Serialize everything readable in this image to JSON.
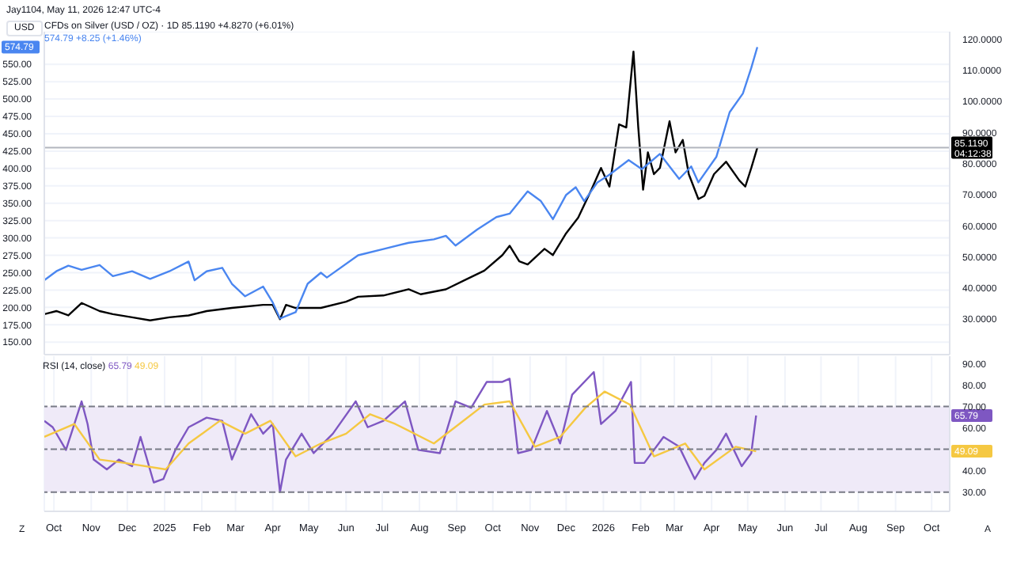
{
  "chart_data": [
    {
      "type": "line",
      "legend": "top left",
      "grid": true,
      "tick_labels": "y",
      "annotations": [
        "Jay1104, May 11, 2026 12:47 UTC-4",
        "USD",
        "85.1190 +4.8270 (+6.01%)",
        "574.79 +8.25 (+1.46%)",
        "574.79",
        "04:12:38"
      ],
      "series": [
        {
          "name": "CFDs on Silver (USD / OZ) · 1D",
          "color": "#000000",
          "axis": "y2",
          "x": [
            "2024-09-23",
            "2024-10-03",
            "2024-10-13",
            "2024-10-24",
            "2024-11-08",
            "2024-11-19",
            "2024-12-05",
            "2024-12-20",
            "2025-01-05",
            "2025-01-21",
            "2025-02-05",
            "2025-02-26",
            "2025-03-24",
            "2025-04-01",
            "2025-04-07",
            "2025-04-12",
            "2025-04-20",
            "2025-05-11",
            "2025-06-01",
            "2025-06-11",
            "2025-07-02",
            "2025-07-23",
            "2025-08-02",
            "2025-08-23",
            "2025-09-08",
            "2025-09-24",
            "2025-10-09",
            "2025-10-15",
            "2025-10-23",
            "2025-10-30",
            "2025-11-13",
            "2025-11-20",
            "2025-12-01",
            "2025-12-11",
            "2025-12-22",
            "2025-12-30",
            "2026-01-06",
            "2026-01-14",
            "2026-01-20",
            "2026-01-26",
            "2026-01-30",
            "2026-02-03",
            "2026-02-07",
            "2026-02-12",
            "2026-02-17",
            "2026-02-25",
            "2026-03-02",
            "2026-03-08",
            "2026-03-13",
            "2026-03-21",
            "2026-03-26",
            "2026-04-03",
            "2026-04-13",
            "2026-04-24",
            "2026-04-29",
            "2026-05-04",
            "2026-05-09"
          ],
          "values": [
            31.6,
            32.6,
            31.2,
            35.2,
            32.6,
            31.6,
            30.6,
            29.6,
            30.6,
            31.2,
            32.6,
            33.6,
            34.6,
            34.6,
            30.0,
            34.6,
            33.6,
            33.6,
            35.6,
            37.2,
            37.6,
            39.6,
            38.0,
            39.6,
            42.6,
            45.6,
            50.6,
            53.6,
            48.6,
            47.6,
            52.6,
            50.6,
            57.6,
            62.6,
            71.6,
            78.6,
            72.6,
            92.6,
            91.6,
            116,
            91.6,
            71.6,
            83.6,
            76.6,
            78.6,
            93.6,
            83.6,
            87.6,
            76.6,
            68.6,
            69.6,
            76.6,
            80.6,
            74.6,
            72.6,
            78.6,
            85.119
          ]
        },
        {
          "color": "#4a86f0",
          "axis": "y",
          "x": [
            "2024-09-23",
            "2024-10-03",
            "2024-10-13",
            "2024-10-24",
            "2024-11-08",
            "2024-11-19",
            "2024-12-05",
            "2024-12-20",
            "2025-01-05",
            "2025-01-21",
            "2025-01-26",
            "2025-02-05",
            "2025-02-18",
            "2025-02-26",
            "2025-03-09",
            "2025-03-24",
            "2025-04-01",
            "2025-04-07",
            "2025-04-20",
            "2025-04-30",
            "2025-05-11",
            "2025-05-16",
            "2025-06-11",
            "2025-07-02",
            "2025-07-23",
            "2025-08-13",
            "2025-08-23",
            "2025-08-31",
            "2025-09-18",
            "2025-10-04",
            "2025-10-15",
            "2025-10-30",
            "2025-11-10",
            "2025-11-20",
            "2025-12-01",
            "2025-12-09",
            "2025-12-16",
            "2025-12-27",
            "2026-01-06",
            "2026-01-22",
            "2026-02-02",
            "2026-02-17",
            "2026-03-05",
            "2026-03-15",
            "2026-03-21",
            "2026-04-05",
            "2026-04-16",
            "2026-04-27",
            "2026-05-04",
            "2026-05-09"
          ],
          "values": [
            239,
            252,
            260,
            254,
            261,
            245,
            252,
            241,
            252,
            266,
            239,
            252,
            257,
            234,
            216,
            230,
            207,
            184,
            193,
            234,
            250,
            243,
            275,
            284,
            293,
            298,
            303,
            289,
            312,
            330,
            335,
            367,
            353,
            327,
            362,
            373,
            353,
            380,
            391,
            412,
            399,
            421,
            385,
            403,
            380,
            417,
            481,
            508,
            545,
            574.79
          ]
        }
      ],
      "xlim": [
        "2024-09-23",
        "2026-10-16"
      ],
      "xticks": [
        {
          "value": "2024-10-01",
          "label": null
        },
        {
          "value": "2024-11-01",
          "label": null
        },
        {
          "value": "2024-12-01",
          "label": null
        },
        {
          "value": "2025-01-01",
          "label": null
        },
        {
          "value": "2025-02-01",
          "label": null
        },
        {
          "value": "2025-03-01",
          "label": null
        },
        {
          "value": "2025-04-01",
          "label": null
        },
        {
          "value": "2025-05-01",
          "label": null
        },
        {
          "value": "2025-06-01",
          "label": null
        },
        {
          "value": "2025-07-01",
          "label": null
        },
        {
          "value": "2025-08-01",
          "label": null
        },
        {
          "value": "2025-09-01",
          "label": null
        },
        {
          "value": "2025-10-01",
          "label": null
        },
        {
          "value": "2025-11-01",
          "label": null
        },
        {
          "value": "2025-12-01",
          "label": null
        },
        {
          "value": "2026-01-01",
          "label": null
        },
        {
          "value": "2026-02-01",
          "label": null
        },
        {
          "value": "2026-03-01",
          "label": null
        },
        {
          "value": "2026-04-01",
          "label": null
        },
        {
          "value": "2026-05-01",
          "label": null
        },
        {
          "value": "2026-06-01",
          "label": null
        },
        {
          "value": "2026-07-01",
          "label": null
        },
        {
          "value": "2026-08-01",
          "label": null
        },
        {
          "value": "2026-09-01",
          "label": null
        },
        {
          "value": "2026-10-01",
          "label": null
        }
      ],
      "ylim": [
        132,
        597
      ],
      "yticks": [
        {
          "value": 150,
          "label": "150.00"
        },
        {
          "value": 175,
          "label": "175.00"
        },
        {
          "value": 200,
          "label": "200.00"
        },
        {
          "value": 225,
          "label": "225.00"
        },
        {
          "value": 250,
          "label": "250.00"
        },
        {
          "value": 275,
          "label": "275.00"
        },
        {
          "value": 300,
          "label": "300.00"
        },
        {
          "value": 325,
          "label": "325.00"
        },
        {
          "value": 350,
          "label": "350.00"
        },
        {
          "value": 375,
          "label": "375.00"
        },
        {
          "value": 400,
          "label": "400.00"
        },
        {
          "value": 425,
          "label": "425.00"
        },
        {
          "value": 450,
          "label": "450.00"
        },
        {
          "value": 475,
          "label": "475.00"
        },
        {
          "value": 500,
          "label": "500.00"
        },
        {
          "value": 525,
          "label": "525.00"
        },
        {
          "value": 550,
          "label": "550.00"
        }
      ],
      "y2lim": [
        18.6,
        122.4
      ],
      "y2ticks": [
        {
          "value": 30,
          "label": "30.0000"
        },
        {
          "value": 40,
          "label": "40.0000"
        },
        {
          "value": 50,
          "label": "50.0000"
        },
        {
          "value": 60,
          "label": "60.0000"
        },
        {
          "value": 70,
          "label": "70.0000"
        },
        {
          "value": 80,
          "label": "80.0000"
        },
        {
          "value": 90,
          "label": "90.0000"
        },
        {
          "value": 100,
          "label": "100.0000"
        },
        {
          "value": 110,
          "label": "110.0000"
        },
        {
          "value": 120,
          "label": "120.0000"
        }
      ],
      "ref_lines": [
        {
          "axis": "y2",
          "value": 85.119,
          "label": "85.1190",
          "color": "#b2b5be"
        }
      ]
    },
    {
      "type": "line",
      "title": "RSI (14, close)",
      "grid": "x",
      "annotations": [
        "65.79",
        "49.09",
        "Z",
        "A"
      ],
      "series": [
        {
          "color": "#7e57c2",
          "x": [
            "2024-09-23",
            "2024-09-30",
            "2024-10-11",
            "2024-10-18",
            "2024-10-24",
            "2024-10-29",
            "2024-11-03",
            "2024-11-14",
            "2024-11-24",
            "2024-12-05",
            "2024-12-12",
            "2024-12-23",
            "2024-12-31",
            "2025-01-10",
            "2025-01-21",
            "2025-02-05",
            "2025-02-18",
            "2025-02-26",
            "2025-03-14",
            "2025-03-24",
            "2025-04-01",
            "2025-04-07",
            "2025-04-12",
            "2025-04-25",
            "2025-05-05",
            "2025-05-21",
            "2025-06-09",
            "2025-06-19",
            "2025-07-02",
            "2025-07-20",
            "2025-07-31",
            "2025-08-18",
            "2025-08-31",
            "2025-09-13",
            "2025-09-26",
            "2025-10-09",
            "2025-10-15",
            "2025-10-22",
            "2025-11-02",
            "2025-11-15",
            "2025-11-26",
            "2025-12-06",
            "2025-12-24",
            "2025-12-30",
            "2026-01-11",
            "2026-01-24",
            "2026-01-27",
            "2026-02-04",
            "2026-02-20",
            "2026-03-05",
            "2026-03-18",
            "2026-03-26",
            "2026-04-05",
            "2026-04-13",
            "2026-04-26",
            "2026-05-04",
            "2026-05-08"
          ],
          "values": [
            63.3,
            60.3,
            49.7,
            61.8,
            72.4,
            61.8,
            45.2,
            40.6,
            45.2,
            42.1,
            55.8,
            34.5,
            36.1,
            49.7,
            60.3,
            64.8,
            63.3,
            45.2,
            66.4,
            57.3,
            61.8,
            30.0,
            45.2,
            57.3,
            48.2,
            57.3,
            72.4,
            60.3,
            63.3,
            72.4,
            49.7,
            48.2,
            72.4,
            69.4,
            81.5,
            81.5,
            83.0,
            48.2,
            49.7,
            67.9,
            52.7,
            75.5,
            86.1,
            61.8,
            67.9,
            81.5,
            43.6,
            43.6,
            55.8,
            51.2,
            36.1,
            43.6,
            49.7,
            57.3,
            42.1,
            48.2,
            65.79
          ]
        },
        {
          "color": "#f5c842",
          "x": [
            "2024-09-23",
            "2024-10-18",
            "2024-11-08",
            "2024-11-29",
            "2025-01-02",
            "2025-01-21",
            "2025-02-16",
            "2025-03-09",
            "2025-03-30",
            "2025-04-20",
            "2025-05-11",
            "2025-06-01",
            "2025-06-21",
            "2025-07-12",
            "2025-08-13",
            "2025-09-03",
            "2025-09-24",
            "2025-10-15",
            "2025-11-05",
            "2025-11-26",
            "2025-12-17",
            "2026-01-02",
            "2026-01-23",
            "2026-02-12",
            "2026-03-10",
            "2026-03-26",
            "2026-04-21",
            "2026-05-08"
          ],
          "values": [
            55.8,
            61.8,
            45.2,
            43.6,
            40.6,
            52.7,
            63.3,
            57.3,
            63.3,
            46.7,
            52.7,
            57.3,
            66.4,
            61.8,
            52.7,
            61.8,
            70.9,
            72.4,
            51.2,
            55.8,
            69.4,
            77.0,
            70.9,
            46.7,
            52.7,
            40.6,
            51.2,
            49.09
          ]
        }
      ],
      "xlim": [
        "2024-09-23",
        "2026-10-16"
      ],
      "xticks": [
        {
          "value": "2024-10-01",
          "label": "Oct"
        },
        {
          "value": "2024-11-01",
          "label": "Nov"
        },
        {
          "value": "2024-12-01",
          "label": "Dec"
        },
        {
          "value": "2025-01-01",
          "label": "2025"
        },
        {
          "value": "2025-02-01",
          "label": "Feb"
        },
        {
          "value": "2025-03-01",
          "label": "Mar"
        },
        {
          "value": "2025-04-01",
          "label": "Apr"
        },
        {
          "value": "2025-05-01",
          "label": "May"
        },
        {
          "value": "2025-06-01",
          "label": "Jun"
        },
        {
          "value": "2025-07-01",
          "label": "Jul"
        },
        {
          "value": "2025-08-01",
          "label": "Aug"
        },
        {
          "value": "2025-09-01",
          "label": "Sep"
        },
        {
          "value": "2025-10-01",
          "label": "Oct"
        },
        {
          "value": "2025-11-01",
          "label": "Nov"
        },
        {
          "value": "2025-12-01",
          "label": "Dec"
        },
        {
          "value": "2026-01-01",
          "label": "2026"
        },
        {
          "value": "2026-02-01",
          "label": "Feb"
        },
        {
          "value": "2026-03-01",
          "label": "Mar"
        },
        {
          "value": "2026-04-01",
          "label": "Apr"
        },
        {
          "value": "2026-05-01",
          "label": "May"
        },
        {
          "value": "2026-06-01",
          "label": "Jun"
        },
        {
          "value": "2026-07-01",
          "label": "Jul"
        },
        {
          "value": "2026-08-01",
          "label": "Aug"
        },
        {
          "value": "2026-09-01",
          "label": "Sep"
        },
        {
          "value": "2026-10-01",
          "label": "Oct"
        }
      ],
      "ylim": [
        21,
        93.5
      ],
      "yticks": [
        {
          "value": 30,
          "label": "30.00"
        },
        {
          "value": 40,
          "label": "40.00"
        },
        {
          "value": 50,
          "label": null
        },
        {
          "value": 60,
          "label": "60.00"
        },
        {
          "value": 70,
          "label": "70.00"
        },
        {
          "value": 80,
          "label": "80.00"
        },
        {
          "value": 90,
          "label": "90.00"
        }
      ],
      "bands": [
        {
          "axis": "y",
          "from": 30,
          "to": 70,
          "color": "#efeaf8"
        }
      ],
      "ref_lines": [
        {
          "axis": "y",
          "value": 70,
          "color": "#787b86",
          "line_style": "dashed"
        },
        {
          "axis": "y",
          "value": 50,
          "color": "#787b86",
          "line_style": "dashed"
        },
        {
          "axis": "y",
          "value": 30,
          "color": "#787b86",
          "line_style": "dashed"
        }
      ]
    }
  ]
}
